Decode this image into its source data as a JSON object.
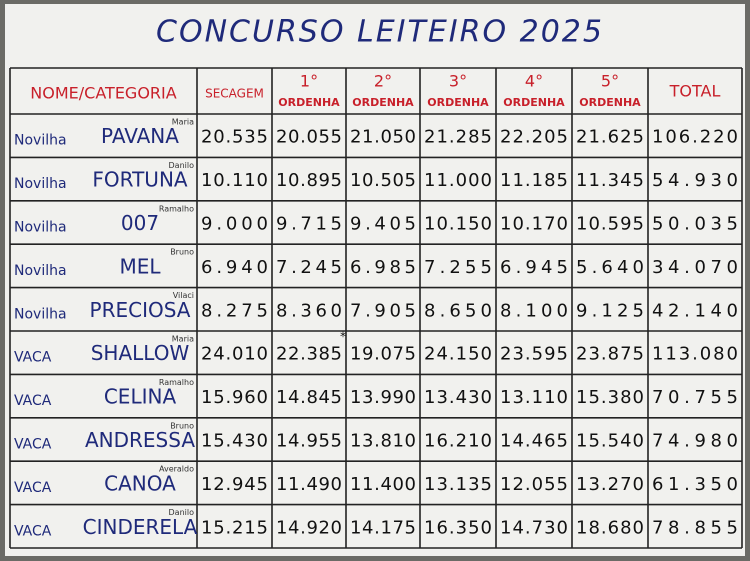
{
  "board": {
    "title": "CONCURSO LEITEIRO 2025",
    "header": {
      "name": "NOME/CATEGORIA",
      "secagem": "SECAGEM",
      "ordenhas": [
        {
          "number": "1°",
          "label": "ORDENHA"
        },
        {
          "number": "2°",
          "label": "ORDENHA"
        },
        {
          "number": "3°",
          "label": "ORDENHA"
        },
        {
          "number": "4°",
          "label": "ORDENHA"
        },
        {
          "number": "5°",
          "label": "ORDENHA"
        }
      ],
      "total": "TOTAL"
    },
    "rows": [
      {
        "category": "Novilha",
        "name": "PAVANA",
        "owner": "Maria",
        "cells": [
          "20.535",
          "20.055",
          "21.050",
          "21.285",
          "22.205",
          "21.625",
          "106.220"
        ]
      },
      {
        "category": "Novilha",
        "name": "FORTUNA",
        "owner": "Danilo",
        "cells": [
          "10.110",
          "10.895",
          "10.505",
          "11.000",
          "11.185",
          "11.345",
          "54.930"
        ]
      },
      {
        "category": "Novilha",
        "name": "007",
        "owner": "Ramalho",
        "cells": [
          "9.000",
          "9.715",
          "9.405",
          "10.150",
          "10.170",
          "10.595",
          "50.035"
        ]
      },
      {
        "category": "Novilha",
        "name": "MEL",
        "owner": "Bruno",
        "cells": [
          "6.940",
          "7.245",
          "6.985",
          "7.255",
          "6.945",
          "5.640",
          "34.070"
        ]
      },
      {
        "category": "Novilha",
        "name": "PRECIOSA",
        "owner": "Vilaci",
        "cells": [
          "8.275",
          "8.360",
          "7.905",
          "8.650",
          "8.100",
          "9.125",
          "42.140"
        ]
      },
      {
        "category": "VACA",
        "name": "SHALLOW",
        "owner": "Maria",
        "cells": [
          "24.010",
          "22.385",
          "19.075",
          "24.150",
          "23.595",
          "23.875",
          "113.080"
        ],
        "note": "*"
      },
      {
        "category": "VACA",
        "name": "CELINA",
        "owner": "Ramalho",
        "cells": [
          "15.960",
          "14.845",
          "13.990",
          "13.430",
          "13.110",
          "15.380",
          "70.755"
        ]
      },
      {
        "category": "VACA",
        "name": "ANDRESSA",
        "owner": "Bruno",
        "cells": [
          "15.430",
          "14.955",
          "13.810",
          "16.210",
          "14.465",
          "15.540",
          "74.980"
        ]
      },
      {
        "category": "VACA",
        "name": "CANOA",
        "owner": "Averaldo",
        "cells": [
          "12.945",
          "11.490",
          "11.400",
          "13.135",
          "12.055",
          "13.270",
          "61.350"
        ]
      },
      {
        "category": "VACA",
        "name": "CINDERELA",
        "owner": "Danilo",
        "cells": [
          "15.215",
          "14.920",
          "14.175",
          "16.350",
          "14.730",
          "18.680",
          "78.855"
        ]
      }
    ]
  }
}
